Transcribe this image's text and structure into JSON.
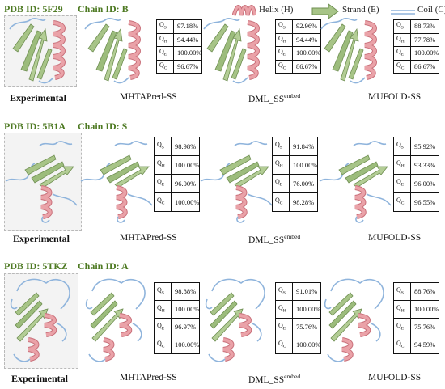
{
  "legend": {
    "helix_label": "Helix (H)",
    "strand_label": "Strand (E)",
    "coil_label": "Coil (C)",
    "colors": {
      "helix": "#e79a9e",
      "strand": "#a7c487",
      "coil": "#8fb4dc",
      "header": "#4e7a23"
    }
  },
  "labels": {
    "experimental": "Experimental",
    "mhtapred": "MHTAPred-SS",
    "dml": "DML_SS",
    "dml_sup": "embed",
    "mufold": "MUFOLD-SS"
  },
  "metric_keys": [
    {
      "sym": "Q",
      "sub": "S"
    },
    {
      "sym": "Q",
      "sub": "H"
    },
    {
      "sym": "Q",
      "sub": "E"
    },
    {
      "sym": "Q",
      "sub": "C"
    }
  ],
  "panels": [
    {
      "pdb": "PDB ID: 5F29",
      "chain": "Chain ID: B",
      "mhtapred": [
        "97.18%",
        "94.44%",
        "100.00%",
        "96.67%"
      ],
      "dml": [
        "92.96%",
        "94.44%",
        "100.00%",
        "86.67%"
      ],
      "mufold": [
        "88.73%",
        "77.78%",
        "100.00%",
        "86.67%"
      ]
    },
    {
      "pdb": "PDB ID: 5B1A",
      "chain": "Chain ID: S",
      "mhtapred": [
        "98.98%",
        "100.00%",
        "96.00%",
        "100.00%"
      ],
      "dml": [
        "91.84%",
        "100.00%",
        "76.00%",
        "98.28%"
      ],
      "mufold": [
        "95.92%",
        "93.33%",
        "96.00%",
        "96.55%"
      ]
    },
    {
      "pdb": "PDB ID: 5TKZ",
      "chain": "Chain ID: A",
      "mhtapred": [
        "98.88%",
        "100.00%",
        "96.97%",
        "100.00%"
      ],
      "dml": [
        "91.01%",
        "100.00%",
        "75.76%",
        "100.00%"
      ],
      "mufold": [
        "88.76%",
        "100.00%",
        "75.76%",
        "94.59%"
      ]
    }
  ]
}
